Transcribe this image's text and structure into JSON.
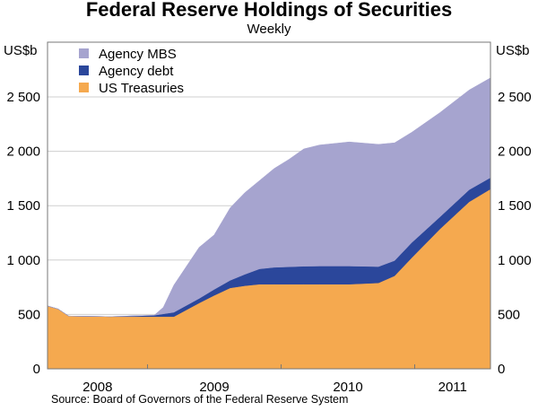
{
  "chart_data": {
    "type": "area",
    "stacked": true,
    "title": "Federal Reserve Holdings of Securities",
    "subtitle": "Weekly",
    "ylabel_left": "US$b",
    "ylabel_right": "US$b",
    "ylim": [
      0,
      2900
    ],
    "yticks": [
      0,
      500,
      1000,
      1500,
      2000,
      2500
    ],
    "ytick_labels": [
      "0",
      "500",
      "1 000",
      "1 500",
      "2 000",
      "2 500"
    ],
    "xlim": [
      "2008-04-02",
      "2011-07-27"
    ],
    "xtick_labels": [
      "2008",
      "2009",
      "2010",
      "2011"
    ],
    "grid": true,
    "legend_position": "top-left",
    "x": [
      "2008-04-02",
      "2008-05-01",
      "2008-05-30",
      "2008-09-20",
      "2009-01-19",
      "2009-02-13",
      "2009-03-14",
      "2009-05-22",
      "2009-07-02",
      "2009-08-15",
      "2009-09-24",
      "2009-11-03",
      "2009-12-13",
      "2010-01-22",
      "2010-03-04",
      "2010-04-16",
      "2010-07-06",
      "2010-09-24",
      "2010-11-07",
      "2010-12-24",
      "2011-03-11",
      "2011-05-30",
      "2011-07-27"
    ],
    "series": [
      {
        "name": "US Treasuries",
        "color": "#f5a94f",
        "values": [
          578,
          550,
          485,
          480,
          480,
          480,
          480,
          605,
          675,
          744,
          764,
          778,
          778,
          778,
          778,
          778,
          778,
          790,
          855,
          1022,
          1286,
          1536,
          1653
        ]
      },
      {
        "name": "Agency debt",
        "color": "#2b479b",
        "values": [
          0,
          0,
          0,
          0,
          12,
          25,
          40,
          42,
          55,
          70,
          105,
          141,
          155,
          160,
          165,
          167,
          167,
          150,
          140,
          139,
          111,
          111,
          105
        ]
      },
      {
        "name": "Agency MBS",
        "color": "#a6a4cf",
        "values": [
          0,
          0,
          0,
          0,
          0,
          60,
          250,
          470,
          501,
          667,
          751,
          812,
          909,
          987,
          1079,
          1113,
          1141,
          1124,
          1083,
          1014,
          959,
          917,
          917
        ]
      }
    ],
    "legend_order": [
      "Agency MBS",
      "Agency debt",
      "US Treasuries"
    ],
    "source": "Source: Board of Governors of the Federal Reserve System"
  }
}
